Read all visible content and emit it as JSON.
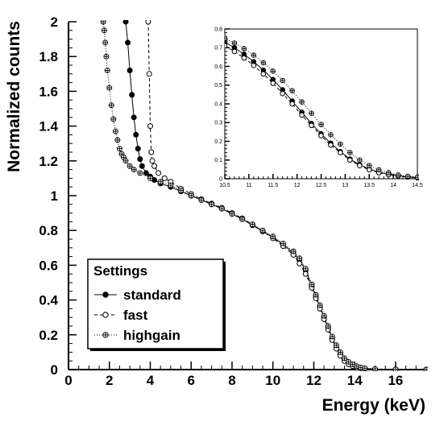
{
  "chart_data": [
    {
      "type": "line",
      "xlabel": "Energy (keV)",
      "ylabel": "Normalized counts",
      "xlim": [
        0,
        17.5
      ],
      "ylim": [
        0,
        2
      ],
      "x_ticks": [
        "0",
        "2",
        "4",
        "6",
        "8",
        "10",
        "12",
        "14",
        "16"
      ],
      "y_ticks": [
        "0",
        "0.2",
        "0.4",
        "0.6",
        "0.8",
        "1",
        "1.2",
        "1.4",
        "1.6",
        "1.8",
        "2"
      ],
      "legend": {
        "title": "Settings",
        "position": "lower-left",
        "entries": [
          "standard",
          "fast",
          "highgain"
        ]
      },
      "series": [
        {
          "name": "standard",
          "line": "solid",
          "marker": "filled-circle",
          "x": [
            2.8,
            2.9,
            3.0,
            3.1,
            3.2,
            3.3,
            3.4,
            3.5,
            3.6,
            3.8,
            4.0,
            4.2,
            4.5,
            5.0,
            5.5,
            6.0,
            6.5,
            7.0,
            7.5,
            8.0,
            8.5,
            9.0,
            9.5,
            10.0,
            10.5,
            11.0,
            11.3,
            11.6,
            11.9,
            12.1,
            12.3,
            12.5,
            12.7,
            12.9,
            13.1,
            13.3,
            13.5,
            13.7,
            13.9,
            14.1,
            14.3,
            14.5,
            15.0,
            16.0,
            17.5
          ],
          "y": [
            2.0,
            1.88,
            1.72,
            1.58,
            1.45,
            1.35,
            1.27,
            1.21,
            1.17,
            1.13,
            1.11,
            1.09,
            1.07,
            1.05,
            1.025,
            1.0,
            0.975,
            0.95,
            0.925,
            0.895,
            0.865,
            0.83,
            0.795,
            0.76,
            0.72,
            0.67,
            0.63,
            0.57,
            0.48,
            0.42,
            0.36,
            0.3,
            0.24,
            0.18,
            0.13,
            0.09,
            0.06,
            0.04,
            0.025,
            0.015,
            0.01,
            0.006,
            0.003,
            0.001,
            0.0
          ]
        },
        {
          "name": "fast",
          "line": "dashed",
          "marker": "open-circle",
          "x": [
            3.9,
            3.95,
            4.0,
            4.05,
            4.1,
            4.2,
            4.4,
            4.7,
            5.0,
            5.5,
            6.0,
            6.5,
            7.0,
            7.5,
            8.0,
            8.5,
            9.0,
            9.5,
            10.0,
            10.5,
            11.0,
            11.3,
            11.6,
            11.9,
            12.1,
            12.3,
            12.5,
            12.7,
            12.9,
            13.1,
            13.3,
            13.5,
            13.7,
            13.9,
            14.1,
            14.3,
            14.5,
            15.0,
            16.0,
            17.5
          ],
          "y": [
            2.0,
            1.7,
            1.4,
            1.25,
            1.2,
            1.17,
            1.13,
            1.1,
            1.08,
            1.04,
            1.01,
            0.98,
            0.955,
            0.93,
            0.9,
            0.87,
            0.835,
            0.795,
            0.755,
            0.71,
            0.66,
            0.61,
            0.55,
            0.47,
            0.41,
            0.35,
            0.29,
            0.23,
            0.17,
            0.12,
            0.08,
            0.05,
            0.03,
            0.02,
            0.012,
            0.008,
            0.005,
            0.002,
            0.001,
            0.0
          ]
        },
        {
          "name": "highgain",
          "line": "dotted",
          "marker": "open-cross",
          "x": [
            1.7,
            1.75,
            1.8,
            1.85,
            1.9,
            2.0,
            2.1,
            2.2,
            2.3,
            2.4,
            2.5,
            2.6,
            2.7,
            2.8,
            3.0,
            3.2,
            3.5,
            4.0,
            4.5,
            5.0,
            5.5,
            6.0,
            6.5,
            7.0,
            7.5,
            8.0,
            8.5,
            9.0,
            9.5,
            10.0,
            10.5,
            11.0,
            11.3,
            11.6,
            11.9,
            12.1,
            12.3,
            12.5,
            12.7,
            12.9,
            13.1,
            13.3,
            13.5,
            13.7,
            13.9,
            14.1,
            14.3,
            14.5,
            15.0,
            16.0,
            17.5
          ],
          "y": [
            2.0,
            1.95,
            1.88,
            1.8,
            1.72,
            1.62,
            1.52,
            1.44,
            1.37,
            1.32,
            1.27,
            1.24,
            1.22,
            1.2,
            1.17,
            1.15,
            1.13,
            1.1,
            1.08,
            1.06,
            1.03,
            1.0,
            0.975,
            0.95,
            0.925,
            0.895,
            0.865,
            0.835,
            0.8,
            0.765,
            0.725,
            0.68,
            0.64,
            0.58,
            0.49,
            0.43,
            0.37,
            0.31,
            0.25,
            0.19,
            0.14,
            0.1,
            0.065,
            0.045,
            0.03,
            0.02,
            0.012,
            0.008,
            0.004,
            0.001,
            0.0
          ]
        }
      ]
    },
    {
      "type": "line",
      "xlim": [
        10.5,
        14.5
      ],
      "ylim": [
        0,
        0.8
      ],
      "x_ticks": [
        "10.5",
        "11",
        "11.5",
        "12",
        "12.5",
        "13",
        "13.5",
        "14",
        "14.5"
      ],
      "y_ticks": [
        "0",
        "0.1",
        "0.2",
        "0.3",
        "0.4",
        "0.5",
        "0.6",
        "0.7",
        "0.8"
      ],
      "series": [
        {
          "name": "standard",
          "x": [
            10.5,
            10.7,
            10.9,
            11.1,
            11.3,
            11.5,
            11.7,
            11.9,
            12.1,
            12.3,
            12.5,
            12.7,
            12.9,
            13.1,
            13.3,
            13.5,
            13.7,
            13.9,
            14.1,
            14.3,
            14.5
          ],
          "y": [
            0.73,
            0.7,
            0.665,
            0.625,
            0.58,
            0.53,
            0.475,
            0.415,
            0.355,
            0.295,
            0.24,
            0.19,
            0.145,
            0.105,
            0.075,
            0.052,
            0.035,
            0.024,
            0.016,
            0.01,
            0.006
          ]
        },
        {
          "name": "fast",
          "x": [
            10.5,
            10.7,
            10.9,
            11.1,
            11.3,
            11.5,
            11.7,
            11.9,
            12.1,
            12.3,
            12.5,
            12.7,
            12.9,
            13.1,
            13.3,
            13.5,
            13.7,
            13.9,
            14.1,
            14.3,
            14.5
          ],
          "y": [
            0.71,
            0.68,
            0.645,
            0.605,
            0.56,
            0.51,
            0.455,
            0.4,
            0.34,
            0.285,
            0.23,
            0.18,
            0.14,
            0.1,
            0.07,
            0.048,
            0.032,
            0.022,
            0.014,
            0.009,
            0.005
          ]
        },
        {
          "name": "highgain",
          "x": [
            10.5,
            10.7,
            10.9,
            11.1,
            11.3,
            11.5,
            11.7,
            11.9,
            12.1,
            12.3,
            12.5,
            12.7,
            12.9,
            13.1,
            13.3,
            13.5,
            13.7,
            13.9,
            14.1,
            14.3,
            14.5
          ],
          "y": [
            0.75,
            0.725,
            0.695,
            0.66,
            0.62,
            0.575,
            0.525,
            0.47,
            0.41,
            0.35,
            0.29,
            0.235,
            0.185,
            0.14,
            0.1,
            0.07,
            0.048,
            0.032,
            0.02,
            0.013,
            0.008
          ]
        }
      ]
    }
  ]
}
